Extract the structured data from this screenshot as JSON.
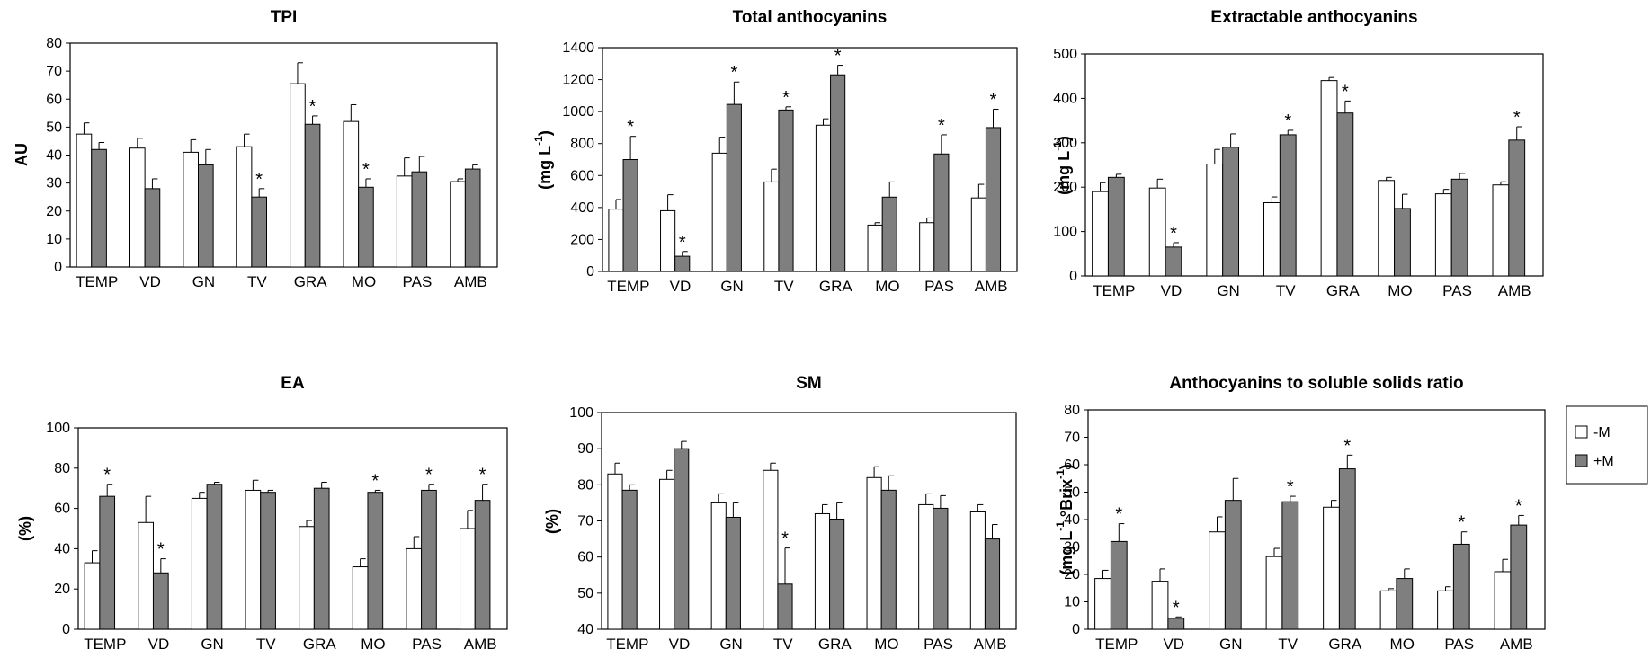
{
  "colors": {
    "minus_fill": "#ffffff",
    "plus_fill": "#7f7f7f",
    "stroke": "#000000"
  },
  "legend": {
    "items": [
      {
        "label": "-M",
        "color": "#ffffff"
      },
      {
        "label": "+M",
        "color": "#7f7f7f"
      }
    ]
  },
  "chart_data": [
    {
      "type": "bar",
      "title": "TPI",
      "ylabel": "AU",
      "ylim": [
        0,
        80
      ],
      "yticks": [
        0,
        10,
        20,
        30,
        40,
        50,
        60,
        70,
        80
      ],
      "categories": [
        "TEMP",
        "VD",
        "GN",
        "TV",
        "GRA",
        "MO",
        "PAS",
        "AMB"
      ],
      "series": [
        {
          "name": "-M",
          "values": [
            47.5,
            42.5,
            41,
            43,
            65.5,
            52,
            32.5,
            30.5
          ],
          "errors": [
            4,
            3.5,
            4.5,
            4.5,
            7.5,
            6,
            6.5,
            1
          ]
        },
        {
          "name": "+M",
          "values": [
            42,
            28,
            36.5,
            25,
            51,
            28.5,
            34,
            35
          ],
          "errors": [
            2.5,
            3.5,
            5.5,
            3,
            3,
            3,
            5.5,
            1.5
          ]
        }
      ],
      "significant": [
        [
          false,
          false
        ],
        [
          false,
          false
        ],
        [
          false,
          false
        ],
        [
          false,
          true
        ],
        [
          false,
          true
        ],
        [
          false,
          true
        ],
        [
          false,
          false
        ],
        [
          false,
          false
        ]
      ]
    },
    {
      "type": "bar",
      "title": "Total anthocyanins",
      "ylabel": "(mg L-1)",
      "ylim": [
        0,
        1400
      ],
      "yticks": [
        0,
        200,
        400,
        600,
        800,
        1000,
        1200,
        1400
      ],
      "categories": [
        "TEMP",
        "VD",
        "GN",
        "TV",
        "GRA",
        "MO",
        "PAS",
        "AMB"
      ],
      "series": [
        {
          "name": "-M",
          "values": [
            390,
            380,
            740,
            560,
            915,
            290,
            305,
            460
          ],
          "errors": [
            60,
            100,
            100,
            80,
            40,
            15,
            30,
            85
          ]
        },
        {
          "name": "+M",
          "values": [
            700,
            95,
            1045,
            1010,
            1230,
            465,
            735,
            900
          ],
          "errors": [
            145,
            30,
            140,
            20,
            60,
            95,
            120,
            115
          ]
        }
      ],
      "significant": [
        [
          false,
          true
        ],
        [
          false,
          true
        ],
        [
          false,
          true
        ],
        [
          false,
          true
        ],
        [
          false,
          true
        ],
        [
          false,
          false
        ],
        [
          false,
          true
        ],
        [
          false,
          true
        ]
      ]
    },
    {
      "type": "bar",
      "title": "Extractable anthocyanins",
      "ylabel": "(mg L-1)",
      "ylim": [
        0,
        500
      ],
      "yticks": [
        0,
        100,
        200,
        300,
        400,
        500
      ],
      "categories": [
        "TEMP",
        "VD",
        "GN",
        "TV",
        "GRA",
        "MO",
        "PAS",
        "AMB"
      ],
      "series": [
        {
          "name": "-M",
          "values": [
            190,
            198,
            252,
            165,
            440,
            215,
            185,
            205
          ],
          "errors": [
            20,
            20,
            33,
            13,
            7,
            7,
            10,
            7
          ]
        },
        {
          "name": "+M",
          "values": [
            222,
            65,
            290,
            318,
            367,
            152,
            218,
            306
          ],
          "errors": [
            7,
            10,
            30,
            10,
            27,
            32,
            13,
            30
          ]
        }
      ],
      "significant": [
        [
          false,
          false
        ],
        [
          false,
          true
        ],
        [
          false,
          false
        ],
        [
          false,
          true
        ],
        [
          false,
          true
        ],
        [
          false,
          false
        ],
        [
          false,
          false
        ],
        [
          false,
          true
        ]
      ]
    },
    {
      "type": "bar",
      "title": "EA",
      "ylabel": "(%)",
      "ylim": [
        0,
        100
      ],
      "yticks": [
        0,
        20,
        40,
        60,
        80,
        100
      ],
      "categories": [
        "TEMP",
        "VD",
        "GN",
        "TV",
        "GRA",
        "MO",
        "PAS",
        "AMB"
      ],
      "series": [
        {
          "name": "-M",
          "values": [
            33,
            53,
            65,
            69,
            51,
            31,
            40,
            50
          ],
          "errors": [
            6,
            13,
            3,
            5,
            3,
            4,
            6,
            9
          ]
        },
        {
          "name": "+M",
          "values": [
            66,
            28,
            72,
            68,
            70,
            68,
            69,
            64
          ],
          "errors": [
            6,
            7,
            1,
            1,
            3,
            1,
            3,
            8
          ]
        }
      ],
      "significant": [
        [
          false,
          true
        ],
        [
          false,
          true
        ],
        [
          false,
          false
        ],
        [
          false,
          false
        ],
        [
          false,
          false
        ],
        [
          false,
          true
        ],
        [
          false,
          true
        ],
        [
          false,
          true
        ]
      ]
    },
    {
      "type": "bar",
      "title": "SM",
      "ylabel": "(%)",
      "ylim": [
        40,
        100
      ],
      "yticks": [
        40,
        50,
        60,
        70,
        80,
        90,
        100
      ],
      "categories": [
        "TEMP",
        "VD",
        "GN",
        "TV",
        "GRA",
        "MO",
        "PAS",
        "AMB"
      ],
      "series": [
        {
          "name": "-M",
          "values": [
            83,
            81.5,
            75,
            84,
            72,
            82,
            74.5,
            72.5
          ],
          "errors": [
            3,
            2.5,
            2.5,
            2,
            2.5,
            3,
            3,
            2
          ]
        },
        {
          "name": "+M",
          "values": [
            78.5,
            90,
            71,
            52.5,
            70.5,
            78.5,
            73.5,
            65
          ],
          "errors": [
            1.5,
            2,
            4,
            10,
            4.5,
            4,
            3.5,
            4
          ]
        }
      ],
      "significant": [
        [
          false,
          false
        ],
        [
          false,
          false
        ],
        [
          false,
          false
        ],
        [
          false,
          true
        ],
        [
          false,
          false
        ],
        [
          false,
          false
        ],
        [
          false,
          false
        ],
        [
          false,
          false
        ]
      ]
    },
    {
      "type": "bar",
      "title": "Anthocyanins to soluble solids ratio",
      "ylabel": "(mg L-1 °Brix-1)",
      "ylim": [
        0,
        80
      ],
      "yticks": [
        0,
        10,
        20,
        30,
        40,
        50,
        60,
        70,
        80
      ],
      "categories": [
        "TEMP",
        "VD",
        "GN",
        "TV",
        "GRA",
        "MO",
        "PAS",
        "AMB"
      ],
      "series": [
        {
          "name": "-M",
          "values": [
            18.5,
            17.5,
            35.5,
            26.5,
            44.5,
            14,
            14,
            21
          ],
          "errors": [
            3,
            4.5,
            5.5,
            3,
            2.5,
            0.8,
            1.5,
            4.5
          ]
        },
        {
          "name": "+M",
          "values": [
            32,
            4,
            47,
            46.5,
            58.5,
            18.5,
            31,
            38
          ],
          "errors": [
            6.5,
            0.5,
            8,
            2,
            5,
            3.5,
            4.5,
            3.5
          ]
        }
      ],
      "significant": [
        [
          false,
          true
        ],
        [
          false,
          true
        ],
        [
          false,
          false
        ],
        [
          false,
          true
        ],
        [
          false,
          true
        ],
        [
          false,
          false
        ],
        [
          false,
          true
        ],
        [
          false,
          true
        ]
      ]
    }
  ]
}
